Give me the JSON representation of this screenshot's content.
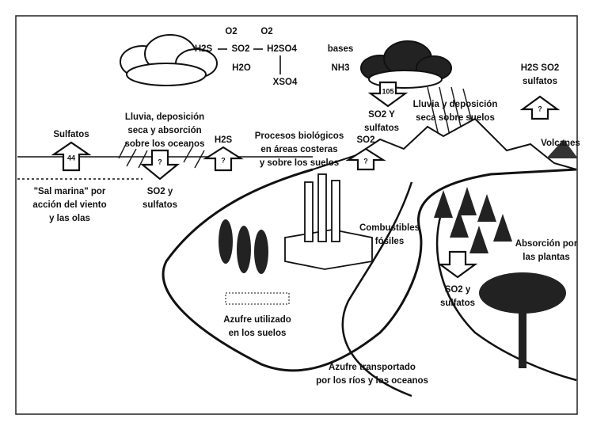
{
  "chemistry": {
    "o2_a": "O2",
    "o2_b": "O2",
    "h2s": "H2S",
    "so2": "SO2",
    "h2so4": "H2SO4",
    "h2o": "H2O",
    "xso4": "XSO4",
    "bases": "bases",
    "nh3": "NH3"
  },
  "labels": {
    "volcano_gases": [
      "H2S SO2",
      "sulfatos"
    ],
    "ocean_rain": [
      "Lluvia, deposición",
      "seca y absorción",
      "sobre los oceanos"
    ],
    "land_rain": [
      "Lluvia y deposición",
      "seca sobre suelos"
    ],
    "land_deposit": [
      "SO2 Y",
      "sulfatos"
    ],
    "sulfates": [
      "Sulfatos"
    ],
    "h2s": [
      "H2S"
    ],
    "bio": [
      "Procesos biológicos",
      "en áreas costeras",
      "y sobre los suelos"
    ],
    "so2": [
      "SO2"
    ],
    "volcanoes": [
      "Volcanes"
    ],
    "sea_salt": [
      "\"Sal marina\" por",
      "acción del viento",
      "y las olas"
    ],
    "ocean_so2": [
      "SO2 y",
      "sulfatos"
    ],
    "fuels": [
      "Combustibles",
      "fósiles"
    ],
    "plants": [
      "Absorción por",
      "las plantas"
    ],
    "plant_so2": [
      "SO2 y",
      "sulfatos"
    ],
    "soil": [
      "Azufre utilizado",
      "en los suelos"
    ],
    "rivers": [
      "Azufre transportado",
      "por los ríos y los oceanos"
    ]
  },
  "arrows": {
    "sulfates": "44",
    "ocean": "?",
    "h2s": "?",
    "so2": "?",
    "land": "105",
    "volcano": "?"
  }
}
